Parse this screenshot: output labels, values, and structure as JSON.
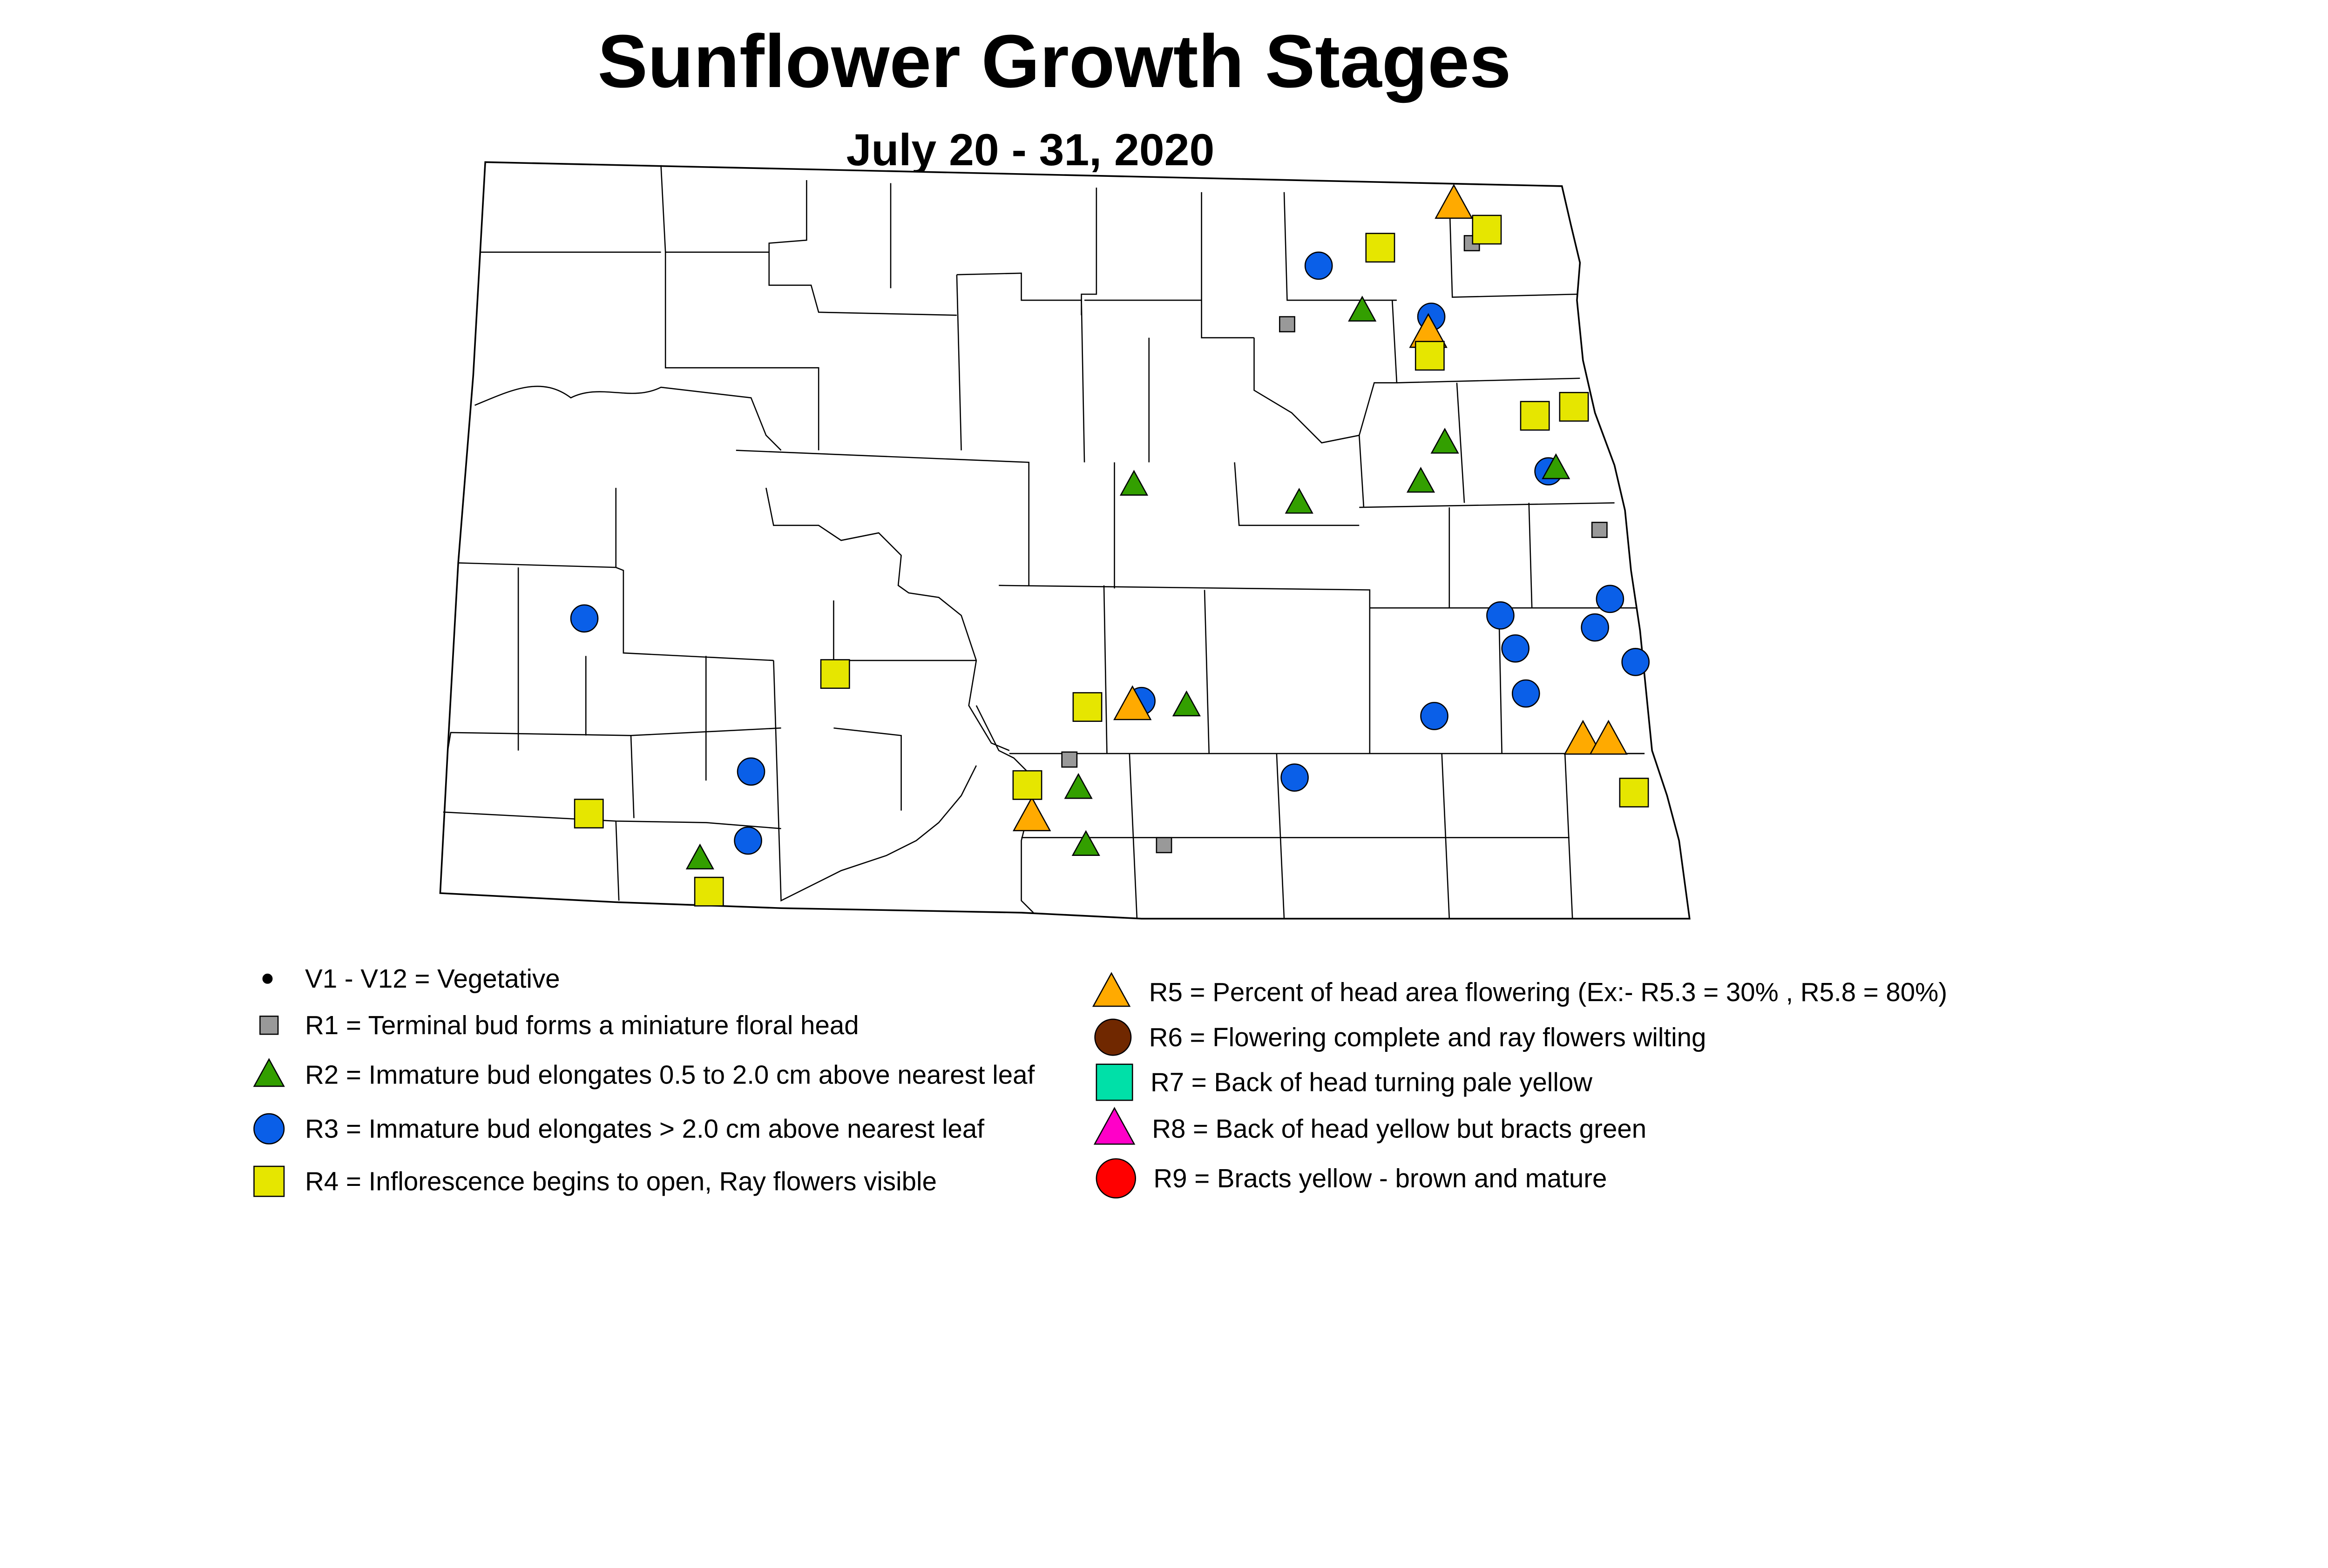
{
  "title": "Sunflower Growth Stages",
  "subtitle": "July 20 - 31, 2020",
  "legend": {
    "V": {
      "label": "V1 - V12 = Vegetative",
      "shape": "dot",
      "color": "#000000"
    },
    "R1": {
      "label": "R1 = Terminal bud forms a miniature floral head",
      "shape": "square",
      "color": "#999999"
    },
    "R2": {
      "label": "R2 = Immature bud elongates 0.5 to 2.0 cm above nearest leaf",
      "shape": "triangle",
      "color": "#339f00"
    },
    "R3": {
      "label": "R3 = Immature bud elongates > 2.0 cm above nearest leaf",
      "shape": "circle",
      "color": "#0a5fe8"
    },
    "R4": {
      "label": "R4 = Inflorescence begins to open, Ray flowers visible",
      "shape": "square",
      "color": "#e6e600"
    },
    "R5": {
      "label": "R5 = Percent of head area flowering (Ex:- R5.3 = 30% , R5.8 = 80%)",
      "shape": "triangle",
      "color": "#ffaa00"
    },
    "R6": {
      "label": "R6 = Flowering complete and ray flowers wilting",
      "shape": "circle",
      "color": "#702800"
    },
    "R7": {
      "label": "R7 = Back of head turning pale yellow",
      "shape": "square",
      "color": "#00e0a8"
    },
    "R8": {
      "label": "R8 = Back of head yellow but bracts green",
      "shape": "triangle",
      "color": "#ff00c8"
    },
    "R9": {
      "label": "R9 = Bracts yellow - brown and mature",
      "shape": "circle",
      "color": "#ff0000"
    }
  }
}
